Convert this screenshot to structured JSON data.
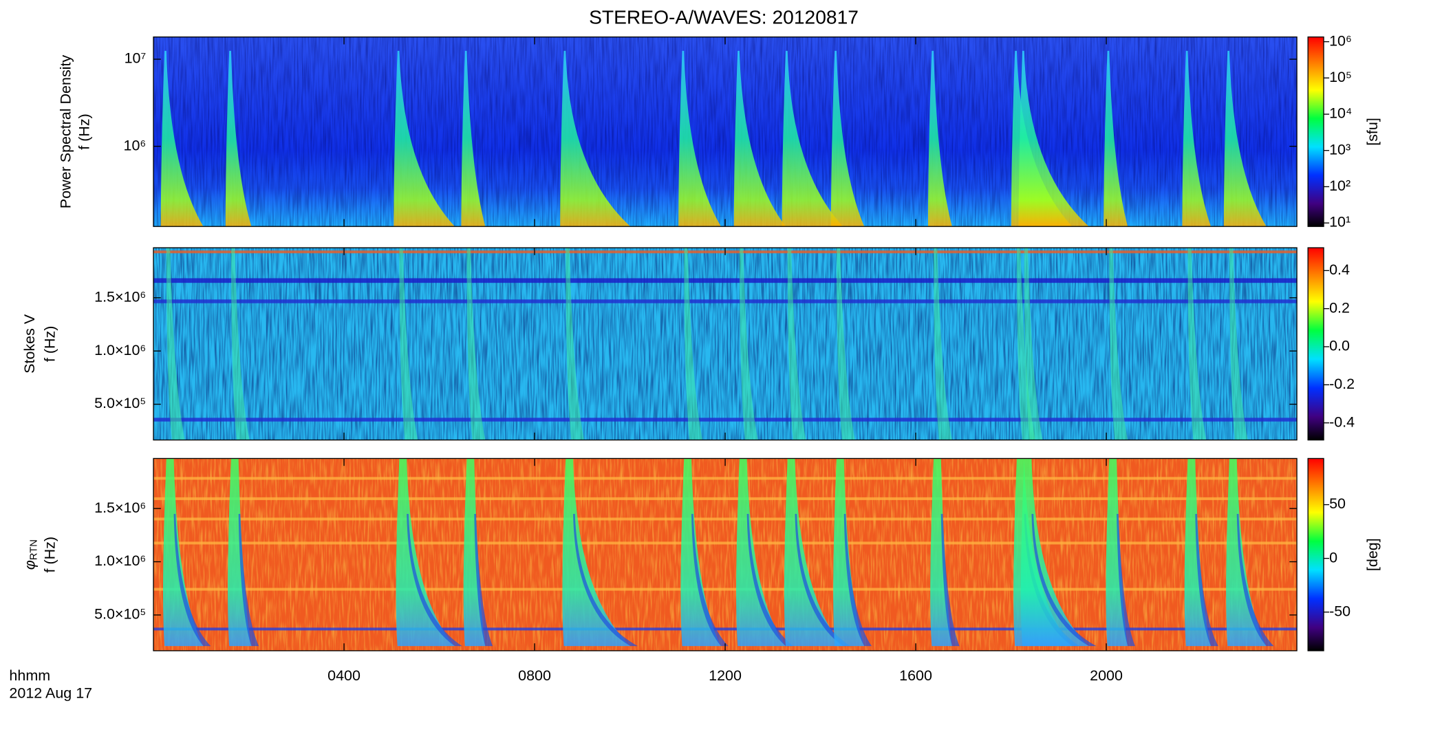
{
  "chart_data": [
    {
      "type": "spectrogram",
      "title": "STEREO-A/WAVES: 20120817",
      "ylabel": [
        "Power Spectral Density",
        "f (Hz)"
      ],
      "ylog": true,
      "ylim": [
        120000,
        18000000
      ],
      "yticks": [
        {
          "value": 1000000,
          "label": "10⁶"
        },
        {
          "value": 10000000,
          "label": "10⁷"
        }
      ],
      "colorbar": {
        "label": "[sfu]",
        "log": true,
        "lim": [
          8,
          1350000
        ],
        "ticks": [
          {
            "value": 10,
            "label": "10¹"
          },
          {
            "value": 100,
            "label": "10²"
          },
          {
            "value": 1000,
            "label": "10³"
          },
          {
            "value": 10000,
            "label": "10⁴"
          },
          {
            "value": 100000,
            "label": "10⁵"
          },
          {
            "value": 1000000,
            "label": "10⁶"
          }
        ]
      }
    },
    {
      "type": "spectrogram",
      "ylabel": [
        "Stokes V",
        "f (Hz)"
      ],
      "ylog": false,
      "ylim": [
        164000,
        1970000
      ],
      "yticks": [
        {
          "value": 500000,
          "label": "5.0×10⁵"
        },
        {
          "value": 1000000,
          "label": "1.0×10⁶"
        },
        {
          "value": 1500000,
          "label": "1.5×10⁶"
        }
      ],
      "colorbar": {
        "log": false,
        "lim": [
          -0.49,
          0.52
        ],
        "ticks": [
          {
            "value": -0.4,
            "label": "-0.4"
          },
          {
            "value": -0.2,
            "label": "-0.2"
          },
          {
            "value": 0,
            "label": "0.0"
          },
          {
            "value": 0.2,
            "label": "0.2"
          },
          {
            "value": 0.4,
            "label": "0.4"
          }
        ]
      }
    },
    {
      "type": "spectrogram",
      "ylabel_symbol": "φ",
      "ylabel_subscript": "RTN",
      "ylabel": [
        "f (Hz)"
      ],
      "ylog": false,
      "ylim": [
        164000,
        1970000
      ],
      "yticks": [
        {
          "value": 500000,
          "label": "5.0×10⁵"
        },
        {
          "value": 1000000,
          "label": "1.0×10⁶"
        },
        {
          "value": 1500000,
          "label": "1.5×10⁶"
        }
      ],
      "xlim": [
        0,
        24
      ],
      "xticks": [
        {
          "value": 4,
          "label": "0400"
        },
        {
          "value": 8,
          "label": "0800"
        },
        {
          "value": 12,
          "label": "1200"
        },
        {
          "value": 16,
          "label": "1600"
        },
        {
          "value": 20,
          "label": "2000"
        }
      ],
      "xlabel": [
        "hhmm",
        "2012 Aug 17"
      ],
      "colorbar": {
        "label": "[deg]",
        "log": false,
        "lim": [
          -86,
          93
        ],
        "ticks": [
          -50,
          0,
          50
        ]
      }
    }
  ]
}
